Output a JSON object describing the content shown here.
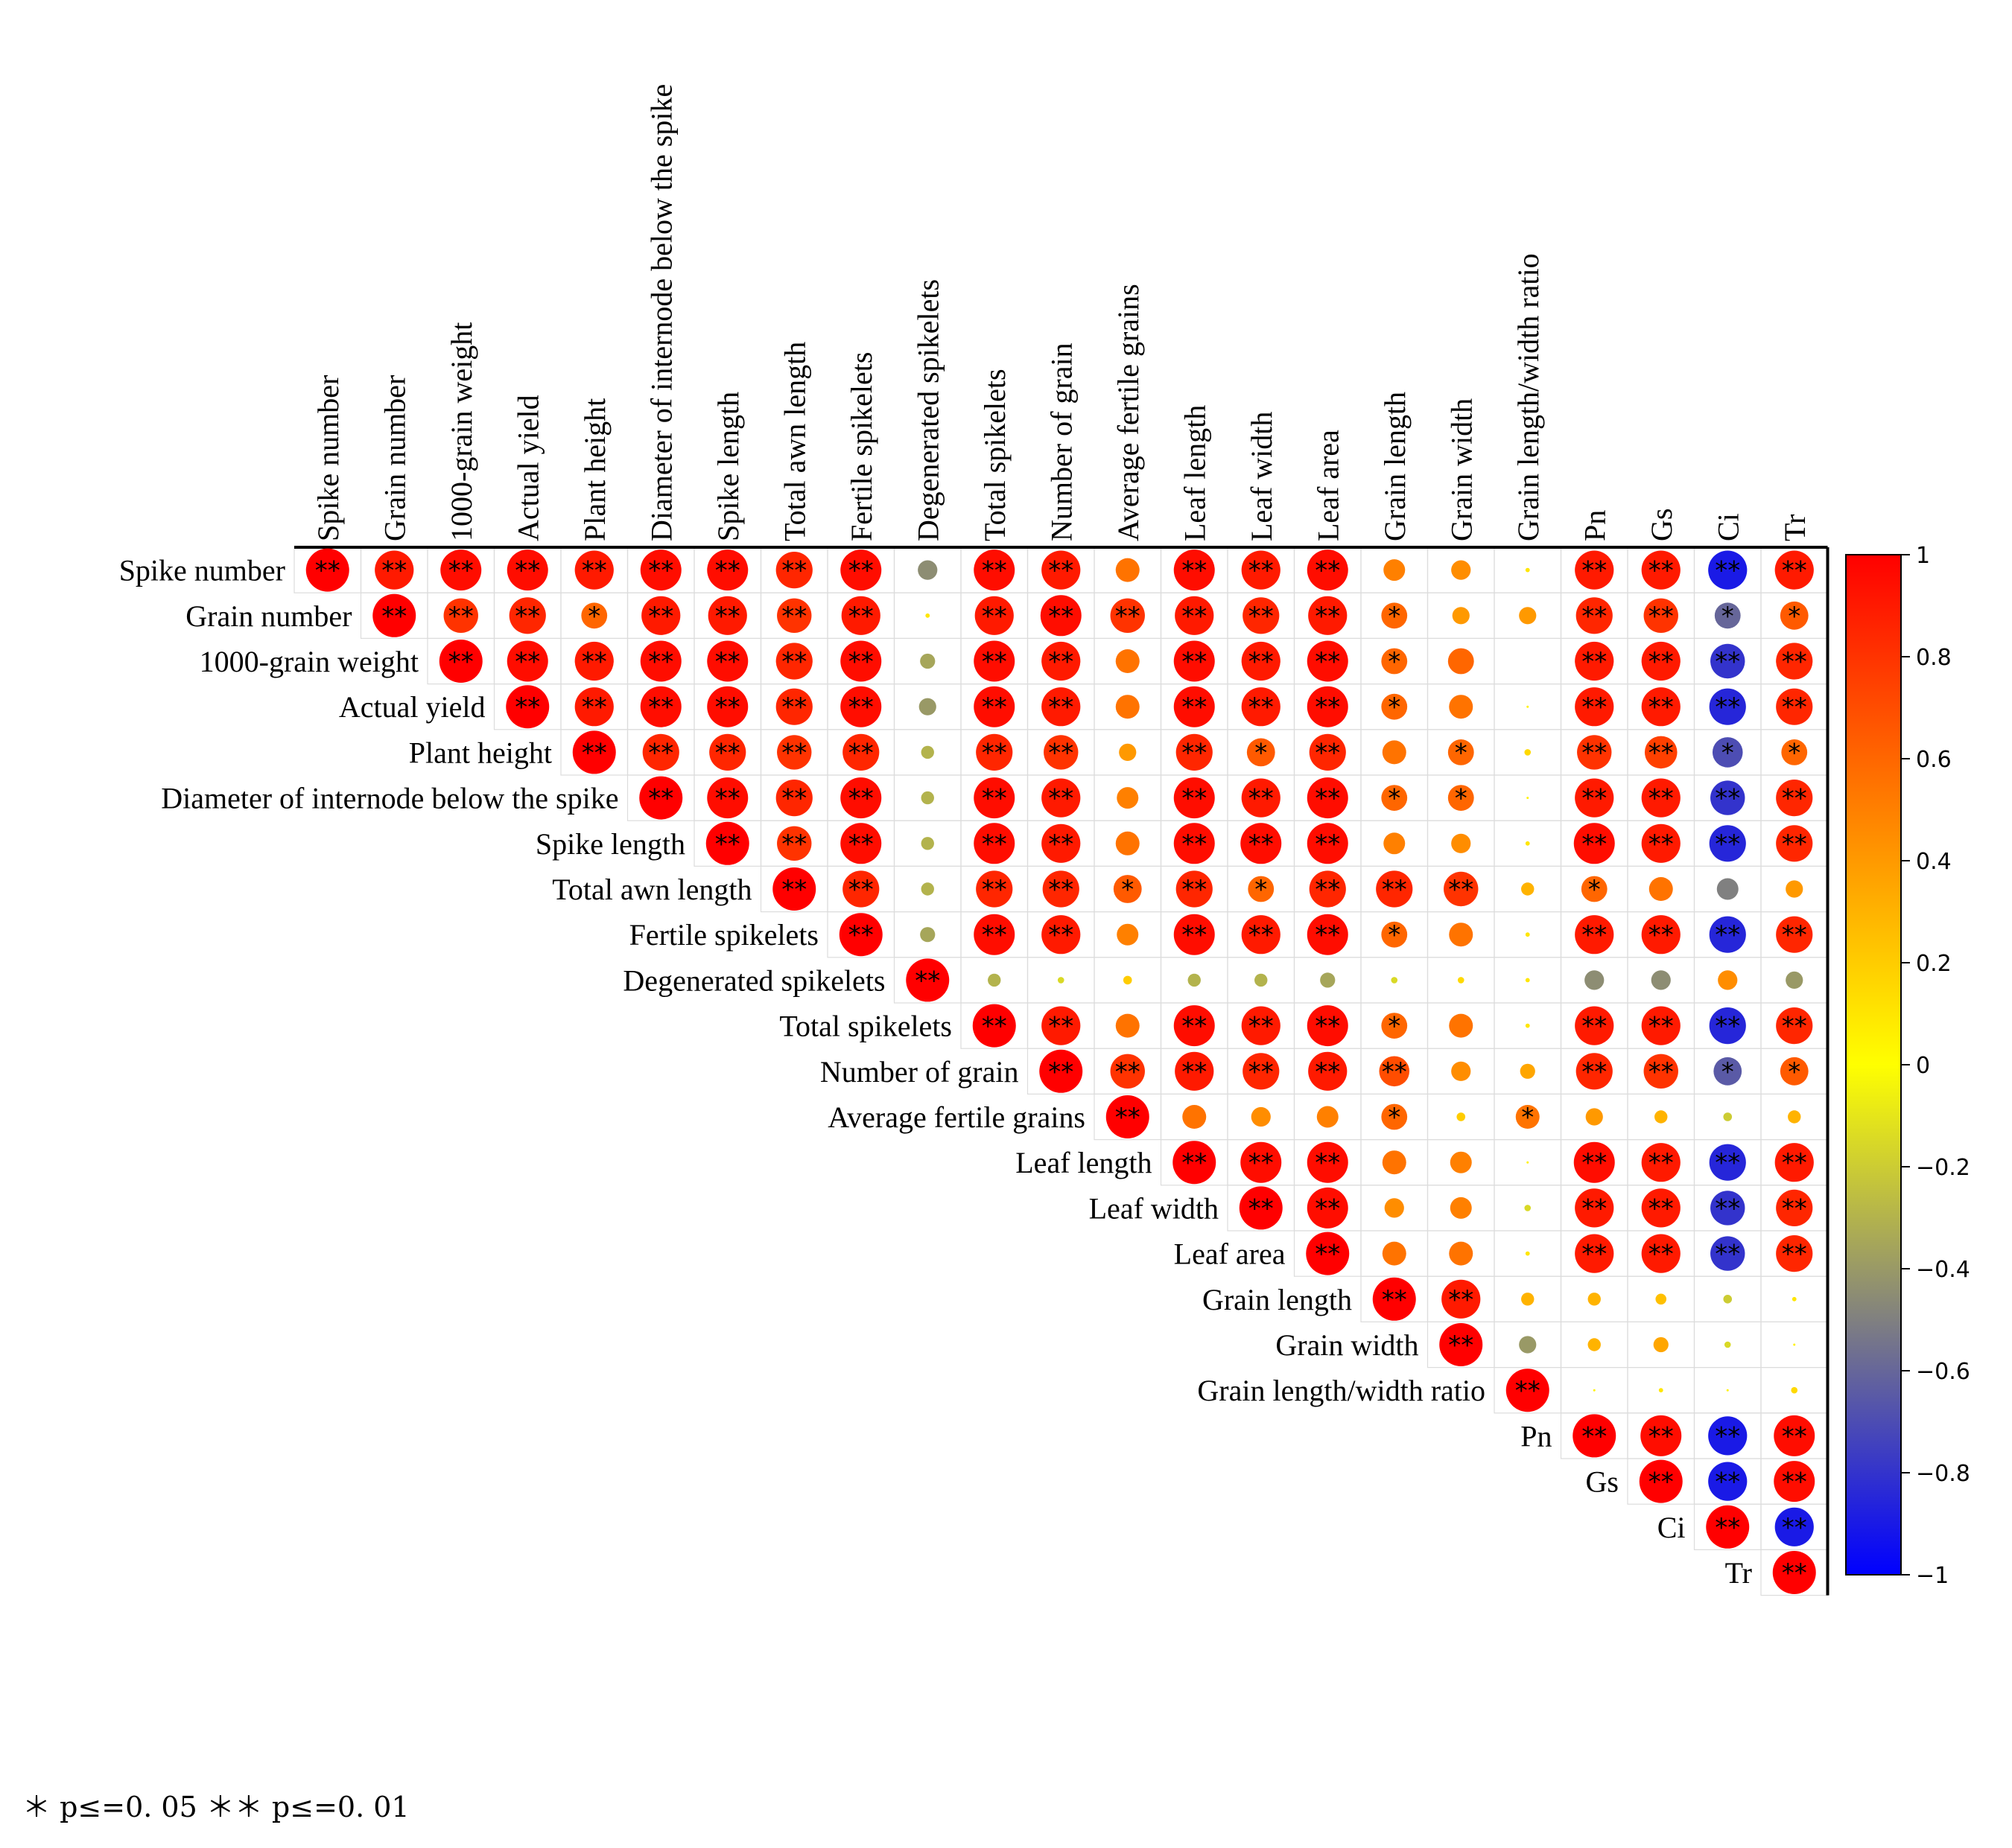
{
  "chart_data": {
    "type": "heatmap",
    "title": "",
    "variables": [
      "Spike number",
      "Grain number",
      "1000-grain weight",
      "Actual yield",
      "Plant height",
      "Diameter of internode below the spike",
      "Spike length",
      "Total awn length",
      "Fertile spikelets",
      "Degenerated spikelets",
      "Total spikelets",
      "Number of grain",
      "Average fertile grains",
      "Leaf length",
      "Leaf width",
      "Leaf area",
      "Grain length",
      "Grain width",
      "Grain length/width ratio",
      "Pn",
      "Gs",
      "Ci",
      "Tr"
    ],
    "correlations": [
      [
        1.0,
        0.9,
        0.95,
        0.95,
        0.9,
        0.95,
        0.95,
        0.85,
        0.95,
        -0.45,
        0.95,
        0.9,
        0.55,
        0.95,
        0.9,
        0.95,
        0.5,
        0.45,
        0.1,
        0.9,
        0.9,
        -0.9,
        0.9
      ],
      [
        null,
        1.0,
        0.8,
        0.85,
        0.6,
        0.9,
        0.9,
        0.8,
        0.9,
        0.1,
        0.9,
        0.95,
        0.8,
        0.9,
        0.85,
        0.9,
        0.6,
        0.4,
        0.4,
        0.85,
        0.8,
        -0.6,
        0.65
      ],
      [
        null,
        null,
        1.0,
        0.95,
        0.9,
        0.95,
        0.95,
        0.85,
        0.95,
        -0.35,
        0.95,
        0.9,
        0.55,
        0.95,
        0.9,
        0.95,
        0.6,
        0.6,
        0.0,
        0.9,
        0.9,
        -0.8,
        0.85
      ],
      [
        null,
        null,
        null,
        1.0,
        0.9,
        0.95,
        0.95,
        0.85,
        0.95,
        -0.4,
        0.95,
        0.9,
        0.55,
        0.95,
        0.9,
        0.95,
        0.6,
        0.55,
        0.05,
        0.9,
        0.9,
        -0.85,
        0.85
      ],
      [
        null,
        null,
        null,
        null,
        1.0,
        0.85,
        0.85,
        0.8,
        0.85,
        -0.3,
        0.85,
        0.8,
        0.4,
        0.85,
        0.65,
        0.85,
        0.55,
        0.6,
        0.15,
        0.8,
        0.75,
        -0.7,
        0.6
      ],
      [
        null,
        null,
        null,
        null,
        null,
        1.0,
        0.95,
        0.85,
        0.95,
        -0.3,
        0.95,
        0.9,
        0.5,
        0.95,
        0.9,
        0.95,
        0.6,
        0.6,
        0.05,
        0.9,
        0.9,
        -0.8,
        0.85
      ],
      [
        null,
        null,
        null,
        null,
        null,
        null,
        1.0,
        0.8,
        0.95,
        -0.3,
        0.95,
        0.9,
        0.55,
        0.95,
        0.95,
        0.95,
        0.5,
        0.45,
        0.1,
        0.95,
        0.9,
        -0.85,
        0.85
      ],
      [
        null,
        null,
        null,
        null,
        null,
        null,
        null,
        1.0,
        0.85,
        -0.3,
        0.85,
        0.85,
        0.65,
        0.85,
        0.6,
        0.85,
        0.85,
        0.8,
        0.3,
        0.6,
        0.55,
        -0.5,
        0.4
      ],
      [
        null,
        null,
        null,
        null,
        null,
        null,
        null,
        null,
        1.0,
        -0.35,
        0.95,
        0.9,
        0.5,
        0.95,
        0.9,
        0.95,
        0.6,
        0.55,
        0.1,
        0.9,
        0.9,
        -0.85,
        0.85
      ],
      [
        null,
        null,
        null,
        null,
        null,
        null,
        null,
        null,
        null,
        1.0,
        -0.3,
        -0.15,
        0.2,
        -0.3,
        -0.3,
        -0.35,
        -0.15,
        0.15,
        0.1,
        -0.45,
        -0.45,
        0.45,
        -0.4
      ],
      [
        null,
        null,
        null,
        null,
        null,
        null,
        null,
        null,
        null,
        null,
        1.0,
        0.9,
        0.55,
        0.95,
        0.9,
        0.95,
        0.6,
        0.55,
        0.1,
        0.9,
        0.9,
        -0.85,
        0.85
      ],
      [
        null,
        null,
        null,
        null,
        null,
        null,
        null,
        null,
        null,
        null,
        null,
        1.0,
        0.8,
        0.9,
        0.85,
        0.9,
        0.7,
        0.45,
        0.35,
        0.85,
        0.8,
        -0.65,
        0.65
      ],
      [
        null,
        null,
        null,
        null,
        null,
        null,
        null,
        null,
        null,
        null,
        null,
        null,
        1.0,
        0.55,
        0.45,
        0.5,
        0.6,
        0.2,
        0.55,
        0.4,
        0.3,
        -0.2,
        0.3
      ],
      [
        null,
        null,
        null,
        null,
        null,
        null,
        null,
        null,
        null,
        null,
        null,
        null,
        null,
        1.0,
        0.95,
        0.95,
        0.55,
        0.5,
        0.05,
        0.95,
        0.9,
        -0.85,
        0.9
      ],
      [
        null,
        null,
        null,
        null,
        null,
        null,
        null,
        null,
        null,
        null,
        null,
        null,
        null,
        null,
        1.0,
        0.95,
        0.45,
        0.5,
        -0.15,
        0.9,
        0.9,
        -0.8,
        0.85
      ],
      [
        null,
        null,
        null,
        null,
        null,
        null,
        null,
        null,
        null,
        null,
        null,
        null,
        null,
        null,
        null,
        1.0,
        0.55,
        0.55,
        0.1,
        0.9,
        0.9,
        -0.8,
        0.85
      ],
      [
        null,
        null,
        null,
        null,
        null,
        null,
        null,
        null,
        null,
        null,
        null,
        null,
        null,
        null,
        null,
        null,
        1.0,
        0.9,
        0.3,
        0.3,
        0.25,
        -0.2,
        0.1
      ],
      [
        null,
        null,
        null,
        null,
        null,
        null,
        null,
        null,
        null,
        null,
        null,
        null,
        null,
        null,
        null,
        null,
        null,
        1.0,
        -0.4,
        0.3,
        0.35,
        -0.15,
        0.05
      ],
      [
        null,
        null,
        null,
        null,
        null,
        null,
        null,
        null,
        null,
        null,
        null,
        null,
        null,
        null,
        null,
        null,
        null,
        null,
        1.0,
        0.05,
        0.1,
        0.05,
        0.15
      ],
      [
        null,
        null,
        null,
        null,
        null,
        null,
        null,
        null,
        null,
        null,
        null,
        null,
        null,
        null,
        null,
        null,
        null,
        null,
        null,
        1.0,
        0.95,
        -0.9,
        0.95
      ],
      [
        null,
        null,
        null,
        null,
        null,
        null,
        null,
        null,
        null,
        null,
        null,
        null,
        null,
        null,
        null,
        null,
        null,
        null,
        null,
        null,
        1.0,
        -0.9,
        0.95
      ],
      [
        null,
        null,
        null,
        null,
        null,
        null,
        null,
        null,
        null,
        null,
        null,
        null,
        null,
        null,
        null,
        null,
        null,
        null,
        null,
        null,
        null,
        1.0,
        -0.9
      ],
      [
        null,
        null,
        null,
        null,
        null,
        null,
        null,
        null,
        null,
        null,
        null,
        null,
        null,
        null,
        null,
        null,
        null,
        null,
        null,
        null,
        null,
        null,
        1.0
      ]
    ],
    "significance": [
      [
        "**",
        "**",
        "**",
        "**",
        "**",
        "**",
        "**",
        "**",
        "**",
        "",
        "**",
        "**",
        "",
        "**",
        "**",
        "**",
        "",
        "",
        "",
        "**",
        "**",
        "**",
        "**"
      ],
      [
        null,
        "**",
        "**",
        "**",
        "*",
        "**",
        "**",
        "**",
        "**",
        "",
        "**",
        "**",
        "**",
        "**",
        "**",
        "**",
        "*",
        "",
        "",
        "**",
        "**",
        "*",
        "*"
      ],
      [
        null,
        null,
        "**",
        "**",
        "**",
        "**",
        "**",
        "**",
        "**",
        "",
        "**",
        "**",
        "",
        "**",
        "**",
        "**",
        "*",
        "",
        "",
        "**",
        "**",
        "**",
        "**"
      ],
      [
        null,
        null,
        null,
        "**",
        "**",
        "**",
        "**",
        "**",
        "**",
        "",
        "**",
        "**",
        "",
        "**",
        "**",
        "**",
        "*",
        "",
        "",
        "**",
        "**",
        "**",
        "**"
      ],
      [
        null,
        null,
        null,
        null,
        "**",
        "**",
        "**",
        "**",
        "**",
        "",
        "**",
        "**",
        "",
        "**",
        "*",
        "**",
        "",
        "*",
        "",
        "**",
        "**",
        "*",
        "*"
      ],
      [
        null,
        null,
        null,
        null,
        null,
        "**",
        "**",
        "**",
        "**",
        "",
        "**",
        "**",
        "",
        "**",
        "**",
        "**",
        "*",
        "*",
        "",
        "**",
        "**",
        "**",
        "**"
      ],
      [
        null,
        null,
        null,
        null,
        null,
        null,
        "**",
        "**",
        "**",
        "",
        "**",
        "**",
        "",
        "**",
        "**",
        "**",
        "",
        "",
        "",
        "**",
        "**",
        "**",
        "**"
      ],
      [
        null,
        null,
        null,
        null,
        null,
        null,
        null,
        "**",
        "**",
        "",
        "**",
        "**",
        "*",
        "**",
        "*",
        "**",
        "**",
        "**",
        "",
        "*",
        "",
        "",
        ""
      ],
      [
        null,
        null,
        null,
        null,
        null,
        null,
        null,
        null,
        "**",
        "",
        "**",
        "**",
        "",
        "**",
        "**",
        "**",
        "*",
        "",
        "",
        "**",
        "**",
        "**",
        "**"
      ],
      [
        null,
        null,
        null,
        null,
        null,
        null,
        null,
        null,
        null,
        "**",
        "",
        "",
        "",
        "",
        "",
        "",
        "",
        "",
        "",
        "",
        "",
        "",
        ""
      ],
      [
        null,
        null,
        null,
        null,
        null,
        null,
        null,
        null,
        null,
        null,
        "**",
        "**",
        "",
        "**",
        "**",
        "**",
        "*",
        "",
        "",
        "**",
        "**",
        "**",
        "**"
      ],
      [
        null,
        null,
        null,
        null,
        null,
        null,
        null,
        null,
        null,
        null,
        null,
        "**",
        "**",
        "**",
        "**",
        "**",
        "**",
        "",
        "",
        "**",
        "**",
        "*",
        "*"
      ],
      [
        null,
        null,
        null,
        null,
        null,
        null,
        null,
        null,
        null,
        null,
        null,
        null,
        "**",
        "",
        "",
        "",
        "*",
        "",
        "*",
        "",
        "",
        "",
        ""
      ],
      [
        null,
        null,
        null,
        null,
        null,
        null,
        null,
        null,
        null,
        null,
        null,
        null,
        null,
        "**",
        "**",
        "**",
        "",
        "",
        "",
        "**",
        "**",
        "**",
        "**"
      ],
      [
        null,
        null,
        null,
        null,
        null,
        null,
        null,
        null,
        null,
        null,
        null,
        null,
        null,
        null,
        "**",
        "**",
        "",
        "",
        "",
        "**",
        "**",
        "**",
        "**"
      ],
      [
        null,
        null,
        null,
        null,
        null,
        null,
        null,
        null,
        null,
        null,
        null,
        null,
        null,
        null,
        null,
        "**",
        "",
        "",
        "",
        "**",
        "**",
        "**",
        "**"
      ],
      [
        null,
        null,
        null,
        null,
        null,
        null,
        null,
        null,
        null,
        null,
        null,
        null,
        null,
        null,
        null,
        null,
        "**",
        "**",
        "",
        "",
        "",
        "",
        ""
      ],
      [
        null,
        null,
        null,
        null,
        null,
        null,
        null,
        null,
        null,
        null,
        null,
        null,
        null,
        null,
        null,
        null,
        null,
        "**",
        "",
        "",
        "",
        "",
        ""
      ],
      [
        null,
        null,
        null,
        null,
        null,
        null,
        null,
        null,
        null,
        null,
        null,
        null,
        null,
        null,
        null,
        null,
        null,
        null,
        "**",
        "",
        "",
        "",
        ""
      ],
      [
        null,
        null,
        null,
        null,
        null,
        null,
        null,
        null,
        null,
        null,
        null,
        null,
        null,
        null,
        null,
        null,
        null,
        null,
        null,
        "**",
        "**",
        "**",
        "**"
      ],
      [
        null,
        null,
        null,
        null,
        null,
        null,
        null,
        null,
        null,
        null,
        null,
        null,
        null,
        null,
        null,
        null,
        null,
        null,
        null,
        null,
        "**",
        "**",
        "**"
      ],
      [
        null,
        null,
        null,
        null,
        null,
        null,
        null,
        null,
        null,
        null,
        null,
        null,
        null,
        null,
        null,
        null,
        null,
        null,
        null,
        null,
        null,
        "**",
        "**"
      ],
      [
        null,
        null,
        null,
        null,
        null,
        null,
        null,
        null,
        null,
        null,
        null,
        null,
        null,
        null,
        null,
        null,
        null,
        null,
        null,
        null,
        null,
        null,
        "**"
      ]
    ],
    "colorbar": {
      "range": [
        -1,
        1
      ],
      "ticks": [
        "1",
        "0.8",
        "0.6",
        "0.4",
        "0.2",
        "0",
        "−0.2",
        "−0.4",
        "−0.6",
        "−0.8",
        "−1"
      ],
      "colors": {
        "pos_high": "#ff0000",
        "pos_mid": "#ff8000",
        "zero": "#ffff00",
        "neg_mid": "#808080",
        "neg_high": "#0000ff"
      }
    },
    "legend_note": "＊ p≤=0. 05   ＊＊ p≤=0. 01"
  }
}
